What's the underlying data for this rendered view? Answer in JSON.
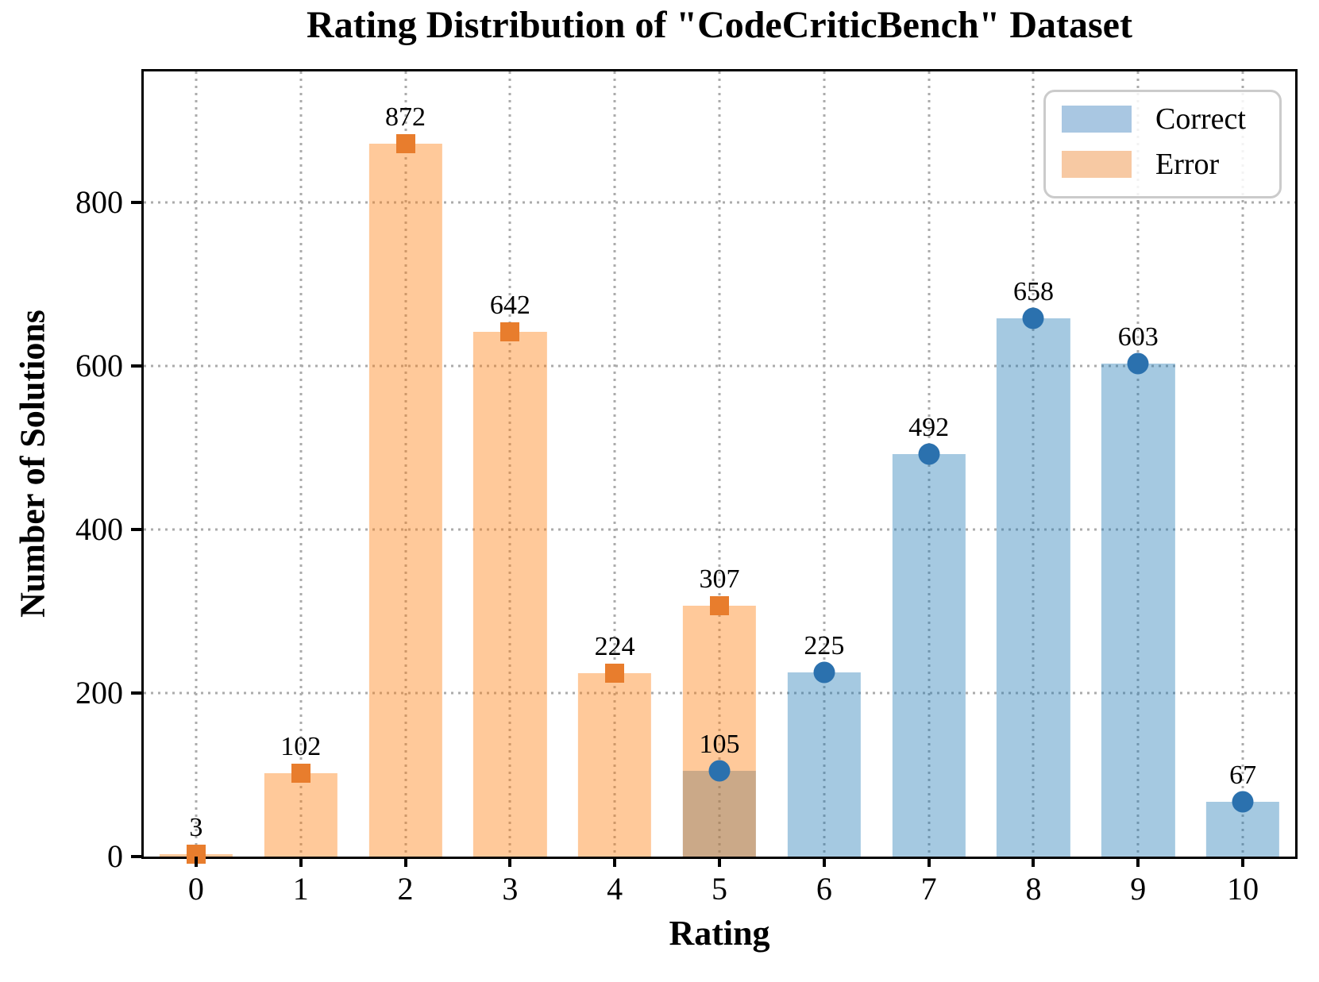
{
  "chart_data": {
    "type": "bar",
    "title": "Rating Distribution of \"CodeCriticBench\" Dataset",
    "xlabel": "Rating",
    "ylabel": "Number of Solutions",
    "categories": [
      "0",
      "1",
      "2",
      "3",
      "4",
      "5",
      "6",
      "7",
      "8",
      "9",
      "10"
    ],
    "yticks": [
      0,
      200,
      400,
      600,
      800
    ],
    "ylim": [
      0,
      960
    ],
    "grid": "dotted, both axes, drawn below translucent bars",
    "legend_position": "upper right",
    "bar_width_fraction": 0.7,
    "series": [
      {
        "name": "Correct",
        "marker": "circle",
        "values": [
          null,
          null,
          null,
          null,
          null,
          105,
          225,
          492,
          658,
          603,
          67
        ],
        "fill": "rgba(31,119,180,0.40)",
        "marker_color": "#2B71AE",
        "legend_swatch": "#A9C7E2"
      },
      {
        "name": "Error",
        "marker": "square",
        "values": [
          3,
          102,
          872,
          642,
          224,
          307,
          null,
          null,
          null,
          null,
          null
        ],
        "fill": "rgba(255,127,14,0.42)",
        "marker_color": "#E87D2D",
        "legend_swatch": "#F7C9A3"
      }
    ],
    "colors": {
      "grid": "#ABABAB",
      "axis": "#000000",
      "text": "#000000",
      "legend_border": "#CBCBCB"
    }
  }
}
